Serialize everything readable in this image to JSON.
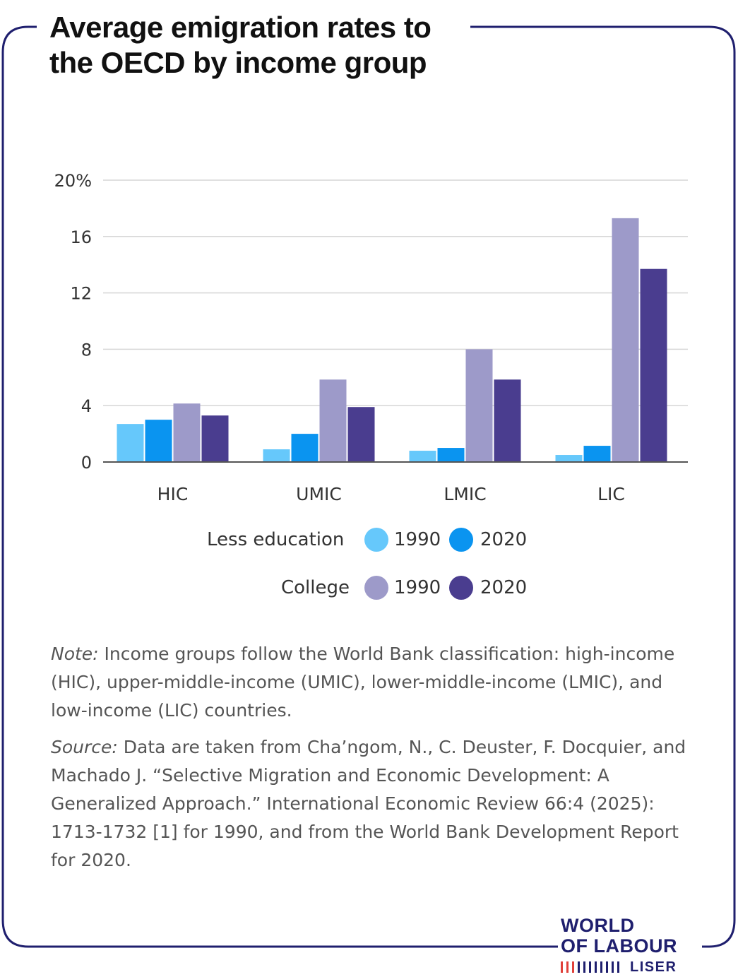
{
  "title": {
    "line1": "Average emigration rates to",
    "line2": "the OECD by income group"
  },
  "colors": {
    "frame": "#1f1f6e",
    "less_1990": "#66c8fb",
    "less_2020": "#0a94f0",
    "college_1990": "#9d9ac9",
    "college_2020": "#4a3d8f",
    "grid": "#d6d6d6",
    "axis": "#555555",
    "logo": "#1f1f6e"
  },
  "chart_data": {
    "type": "bar",
    "categories": [
      "HIC",
      "UMIC",
      "LMIC",
      "LIC"
    ],
    "y_ticks": [
      "0",
      "4",
      "8",
      "12",
      "16",
      "20%"
    ],
    "ylim": [
      0,
      20
    ],
    "grid": true,
    "legend_position": "bottom",
    "series": [
      {
        "group": "Less education",
        "year": "1990",
        "color_key": "less_1990",
        "values": [
          2.7,
          0.9,
          0.8,
          0.5
        ]
      },
      {
        "group": "Less education",
        "year": "2020",
        "color_key": "less_2020",
        "values": [
          3.0,
          2.0,
          1.0,
          1.15
        ]
      },
      {
        "group": "College",
        "year": "1990",
        "color_key": "college_1990",
        "values": [
          4.15,
          5.85,
          8.0,
          17.3
        ]
      },
      {
        "group": "College",
        "year": "2020",
        "color_key": "college_2020",
        "values": [
          3.3,
          3.9,
          5.85,
          13.7
        ]
      }
    ]
  },
  "legend": {
    "less_label": "Less education",
    "college_label": "College",
    "year_1990": "1990",
    "year_2020": "2020"
  },
  "note": {
    "label": "Note:",
    "text": " Income groups follow the World Bank classification: high-income (HIC), upper-middle-income (UMIC), lower-middle-income (LMIC), and low-income (LIC) countries."
  },
  "source": {
    "label": "Source:",
    "text": " Data are taken from Cha’ngom, N., C. Deuster, F. Docquier, and Machado J. “Selective Migration and Economic Development: A Generalized Approach.” International Economic Review 66:4 (2025): 1713-1732 [1] for 1990, and from the World Bank Development Report for 2020."
  },
  "logo": {
    "line1": "WORLD",
    "line2": "OF LABOUR",
    "line3": "LISER"
  }
}
